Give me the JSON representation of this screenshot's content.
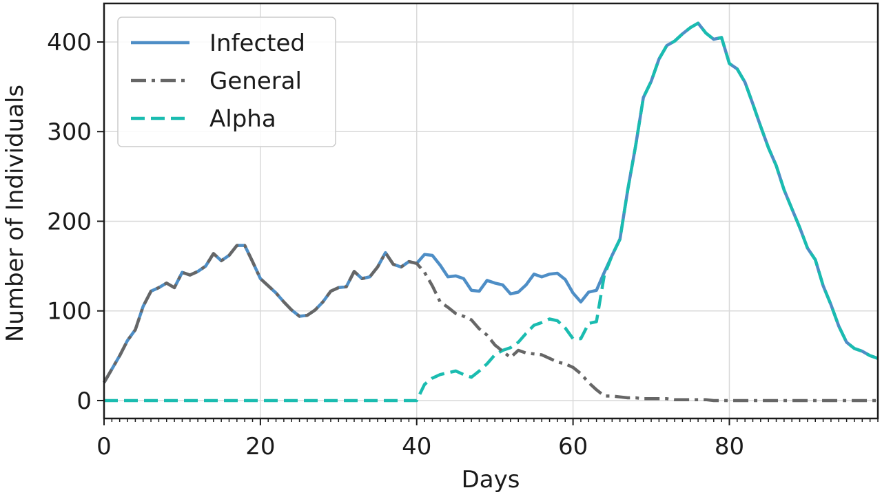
{
  "chart_data": {
    "type": "line",
    "xlabel": "Days",
    "ylabel": "Number of Individuals",
    "xlim": [
      0,
      99
    ],
    "ylim": [
      -20,
      443
    ],
    "xticks": [
      0,
      20,
      40,
      60,
      80
    ],
    "yticks": [
      0,
      100,
      200,
      300,
      400
    ],
    "grid": true,
    "legend_position": "top-left",
    "x": [
      0,
      1,
      2,
      3,
      4,
      5,
      6,
      7,
      8,
      9,
      10,
      11,
      12,
      13,
      14,
      15,
      16,
      17,
      18,
      19,
      20,
      21,
      22,
      23,
      24,
      25,
      26,
      27,
      28,
      29,
      30,
      31,
      32,
      33,
      34,
      35,
      36,
      37,
      38,
      39,
      40,
      41,
      42,
      43,
      44,
      45,
      46,
      47,
      48,
      49,
      50,
      51,
      52,
      53,
      54,
      55,
      56,
      57,
      58,
      59,
      60,
      61,
      62,
      63,
      64,
      65,
      66,
      67,
      68,
      69,
      70,
      71,
      72,
      73,
      74,
      75,
      76,
      77,
      78,
      79,
      80,
      81,
      82,
      83,
      84,
      85,
      86,
      87,
      88,
      89,
      90,
      91,
      92,
      93,
      94,
      95,
      96,
      97,
      98,
      99
    ],
    "series": [
      {
        "name": "Infected",
        "color": "#4e8ec6",
        "style": "solid",
        "values": [
          20,
          35,
          50,
          67,
          79,
          105,
          122,
          126,
          131,
          126,
          143,
          140,
          144,
          150,
          164,
          156,
          162,
          173,
          173,
          155,
          136,
          128,
          120,
          110,
          101,
          94,
          95,
          101,
          110,
          122,
          126,
          127,
          144,
          136,
          138,
          149,
          165,
          152,
          149,
          155,
          153,
          163,
          162,
          151,
          138,
          139,
          136,
          123,
          122,
          134,
          131,
          129,
          119,
          121,
          129,
          141,
          138,
          141,
          142,
          135,
          120,
          110,
          121,
          123,
          143,
          162,
          180,
          235,
          284,
          338,
          356,
          381,
          396,
          401,
          409,
          416,
          421,
          410,
          403,
          405,
          376,
          370,
          355,
          331,
          306,
          282,
          262,
          235,
          214,
          193,
          170,
          157,
          128,
          107,
          83,
          65,
          58,
          55,
          50,
          47
        ]
      },
      {
        "name": "General",
        "color": "#666666",
        "style": "dashdot",
        "values": [
          20,
          35,
          50,
          67,
          79,
          105,
          122,
          126,
          131,
          126,
          143,
          140,
          144,
          150,
          164,
          156,
          162,
          173,
          173,
          155,
          136,
          128,
          120,
          110,
          101,
          94,
          95,
          101,
          110,
          122,
          126,
          127,
          144,
          136,
          138,
          149,
          165,
          152,
          149,
          155,
          153,
          143,
          128,
          110,
          104,
          97,
          94,
          90,
          80,
          73,
          62,
          55,
          48,
          56,
          53,
          52,
          51,
          47,
          43,
          41,
          37,
          30,
          20,
          12,
          5,
          5,
          4,
          3,
          3,
          2,
          2,
          2,
          2,
          1,
          1,
          1,
          1,
          1,
          0,
          0,
          0,
          0,
          0,
          0,
          0,
          0,
          0,
          0,
          0,
          0,
          0,
          0,
          0,
          0,
          0,
          0,
          0,
          0,
          0,
          0
        ]
      },
      {
        "name": "Alpha",
        "color": "#1abcb0",
        "style": "dashed",
        "values": [
          0,
          0,
          0,
          0,
          0,
          0,
          0,
          0,
          0,
          0,
          0,
          0,
          0,
          0,
          0,
          0,
          0,
          0,
          0,
          0,
          0,
          0,
          0,
          0,
          0,
          0,
          0,
          0,
          0,
          0,
          0,
          0,
          0,
          0,
          0,
          0,
          0,
          0,
          0,
          0,
          0,
          18,
          25,
          29,
          31,
          33,
          29,
          26,
          33,
          41,
          51,
          56,
          59,
          65,
          75,
          84,
          87,
          91,
          89,
          81,
          69,
          69,
          86,
          88,
          140,
          162,
          180,
          235,
          284,
          338,
          356,
          381,
          396,
          401,
          409,
          416,
          421,
          410,
          403,
          405,
          376,
          370,
          355,
          331,
          306,
          282,
          262,
          235,
          214,
          193,
          170,
          157,
          128,
          107,
          83,
          65,
          58,
          55,
          50,
          47
        ]
      }
    ]
  }
}
